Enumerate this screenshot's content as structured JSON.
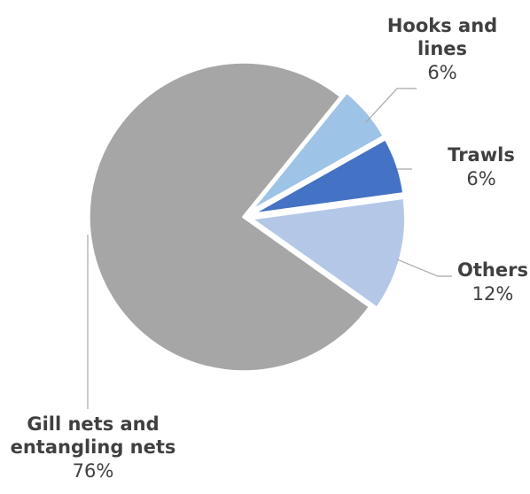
{
  "chart_data": {
    "type": "pie",
    "title": "",
    "categories": [
      "Hooks and lines",
      "Trawls",
      "Others",
      "Gill nets and entangling nets"
    ],
    "values": [
      6,
      6,
      12,
      76
    ],
    "data_labels": [
      "6%",
      "6%",
      "12%",
      "76%"
    ],
    "label_lines": [
      [
        "Hooks and",
        "lines"
      ],
      [
        "Trawls"
      ],
      [
        "Others"
      ],
      [
        "Gill nets and",
        "entangling nets"
      ]
    ],
    "colors": [
      "#9dc3e6",
      "#4472c4",
      "#b4c7e7",
      "#a6a6a6"
    ],
    "legend": "none",
    "data_label_style": "category name and percentage outside with leader lines"
  }
}
